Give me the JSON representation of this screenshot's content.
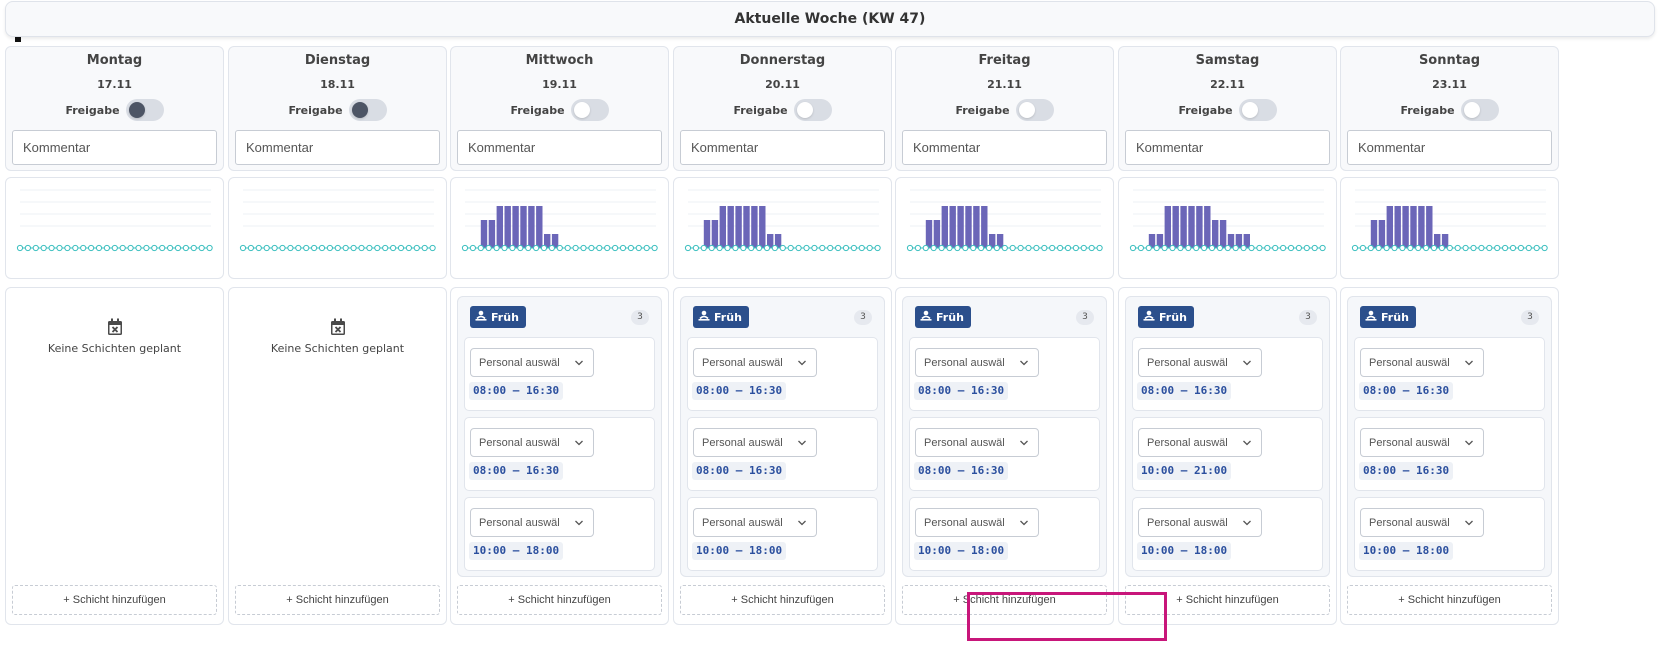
{
  "header": {
    "title": "Aktuelle Woche (KW 47)"
  },
  "labels": {
    "release": "Freigabe",
    "comment_placeholder": "Kommentar",
    "no_shifts": "Keine Schichten geplant",
    "add_shift": "+ Schicht hinzufügen",
    "staff_select": "Personal auswäl"
  },
  "colors": {
    "accent": "#2b4f8c",
    "bar": "#6b66b8",
    "baseline": "#3bbfbf",
    "highlight": "#c8167a"
  },
  "icons": {
    "no_shifts": "calendar-x-icon",
    "shift_badge": "person-icon",
    "select": "chevron-down-icon"
  },
  "days": [
    {
      "name": "Montag",
      "date": "17.11",
      "release_on": false,
      "staffing": [
        0,
        0,
        0,
        0,
        0,
        0,
        0,
        0,
        0,
        0,
        0,
        0,
        0,
        0,
        0,
        0,
        0,
        0,
        0,
        0,
        0,
        0,
        0,
        0
      ],
      "shift": null
    },
    {
      "name": "Dienstag",
      "date": "18.11",
      "release_on": false,
      "staffing": [
        0,
        0,
        0,
        0,
        0,
        0,
        0,
        0,
        0,
        0,
        0,
        0,
        0,
        0,
        0,
        0,
        0,
        0,
        0,
        0,
        0,
        0,
        0,
        0
      ],
      "shift": null
    },
    {
      "name": "Mittwoch",
      "date": "19.11",
      "release_on": false,
      "staffing": [
        0,
        0,
        2,
        2,
        3,
        3,
        3,
        3,
        3,
        3,
        1,
        1,
        0,
        0,
        0,
        0,
        0,
        0,
        0,
        0,
        0,
        0,
        0,
        0
      ],
      "shift": {
        "name": "Früh",
        "count": "3",
        "slots": [
          {
            "time": "08:00 – 16:30"
          },
          {
            "time": "08:00 – 16:30"
          },
          {
            "time": "10:00 – 18:00"
          }
        ]
      }
    },
    {
      "name": "Donnerstag",
      "date": "20.11",
      "release_on": false,
      "staffing": [
        0,
        0,
        2,
        2,
        3,
        3,
        3,
        3,
        3,
        3,
        1,
        1,
        0,
        0,
        0,
        0,
        0,
        0,
        0,
        0,
        0,
        0,
        0,
        0
      ],
      "shift": {
        "name": "Früh",
        "count": "3",
        "slots": [
          {
            "time": "08:00 – 16:30"
          },
          {
            "time": "08:00 – 16:30"
          },
          {
            "time": "10:00 – 18:00"
          }
        ]
      }
    },
    {
      "name": "Freitag",
      "date": "21.11",
      "release_on": false,
      "staffing": [
        0,
        0,
        2,
        2,
        3,
        3,
        3,
        3,
        3,
        3,
        1,
        1,
        0,
        0,
        0,
        0,
        0,
        0,
        0,
        0,
        0,
        0,
        0,
        0
      ],
      "shift": {
        "name": "Früh",
        "count": "3",
        "slots": [
          {
            "time": "08:00 – 16:30"
          },
          {
            "time": "08:00 – 16:30"
          },
          {
            "time": "10:00 – 18:00"
          }
        ]
      }
    },
    {
      "name": "Samstag",
      "date": "22.11",
      "release_on": false,
      "staffing": [
        0,
        0,
        1,
        1,
        3,
        3,
        3,
        3,
        3,
        3,
        2,
        2,
        1,
        1,
        1,
        0,
        0,
        0,
        0,
        0,
        0,
        0,
        0,
        0
      ],
      "shift": {
        "name": "Früh",
        "count": "3",
        "slots": [
          {
            "time": "08:00 – 16:30"
          },
          {
            "time": "10:00 – 21:00"
          },
          {
            "time": "10:00 – 18:00"
          }
        ]
      }
    },
    {
      "name": "Sonntag",
      "date": "23.11",
      "release_on": false,
      "staffing": [
        0,
        0,
        2,
        2,
        3,
        3,
        3,
        3,
        3,
        3,
        1,
        1,
        0,
        0,
        0,
        0,
        0,
        0,
        0,
        0,
        0,
        0,
        0,
        0
      ],
      "shift": {
        "name": "Früh",
        "count": "3",
        "slots": [
          {
            "time": "08:00 – 16:30"
          },
          {
            "time": "08:00 – 16:30"
          },
          {
            "time": "10:00 – 18:00"
          }
        ]
      }
    }
  ]
}
